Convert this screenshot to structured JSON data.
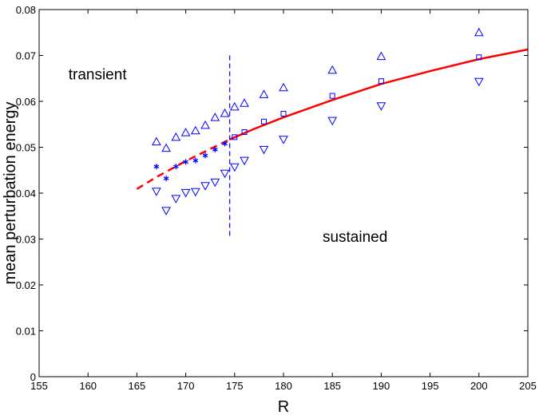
{
  "chart_data": {
    "type": "scatter",
    "xlabel": "R",
    "ylabel": "mean perturbation energy",
    "xlim": [
      155,
      205
    ],
    "ylim": [
      0,
      0.08
    ],
    "xticks": [
      155,
      160,
      165,
      170,
      175,
      180,
      185,
      190,
      195,
      200,
      205
    ],
    "xtick_labels": [
      "155",
      "160",
      "165",
      "170",
      "175",
      "180",
      "185",
      "190",
      "195",
      "200",
      "205"
    ],
    "yticks": [
      0,
      0.01,
      0.02,
      0.03,
      0.04,
      0.05,
      0.06,
      0.07,
      0.08
    ],
    "ytick_labels": [
      "0",
      "0.01",
      "0.02",
      "0.03",
      "0.04",
      "0.05",
      "0.06",
      "0.07",
      "0.08"
    ],
    "grid": false,
    "annotations": [
      {
        "text": "transient",
        "x": 158,
        "y": 0.0648
      },
      {
        "text": "sustained",
        "x": 184,
        "y": 0.0294
      }
    ],
    "series": [
      {
        "marker": "triangle-up",
        "color": "#0000ff",
        "x": [
          167,
          168,
          169,
          170,
          171,
          172,
          173,
          174,
          175,
          176,
          178,
          180,
          185,
          190,
          200
        ],
        "y": [
          0.0512,
          0.0498,
          0.0522,
          0.0532,
          0.0536,
          0.0548,
          0.0565,
          0.0574,
          0.0588,
          0.0596,
          0.0615,
          0.063,
          0.0668,
          0.0698,
          0.075
        ]
      },
      {
        "marker": "triangle-down",
        "color": "#0000ff",
        "x": [
          167,
          168,
          169,
          170,
          171,
          172,
          173,
          174,
          175,
          176,
          178,
          180,
          185,
          190,
          200
        ],
        "y": [
          0.0404,
          0.0362,
          0.0388,
          0.0401,
          0.0403,
          0.0416,
          0.0424,
          0.0443,
          0.0457,
          0.0471,
          0.0495,
          0.0517,
          0.0558,
          0.059,
          0.0643
        ]
      },
      {
        "marker": "asterisk",
        "color": "#0000ff",
        "x": [
          167,
          168,
          169,
          170,
          171,
          172,
          173,
          174
        ],
        "y": [
          0.0458,
          0.0432,
          0.0458,
          0.0468,
          0.0471,
          0.0482,
          0.0495,
          0.0508
        ]
      },
      {
        "marker": "square",
        "color": "#0000ff",
        "x": [
          175,
          176,
          178,
          180,
          185,
          190,
          200
        ],
        "y": [
          0.0522,
          0.0533,
          0.0556,
          0.0573,
          0.0612,
          0.0644,
          0.0696
        ]
      }
    ],
    "fit_curve": {
      "color": "#ff0000",
      "x": [
        165,
        167,
        170,
        172,
        174.5,
        177,
        180,
        185,
        190,
        195,
        200,
        205
      ],
      "y": [
        0.0409,
        0.0435,
        0.047,
        0.0491,
        0.0517,
        0.054,
        0.0565,
        0.0603,
        0.0638,
        0.0666,
        0.0692,
        0.0713
      ],
      "dashed_until_x": 174.5
    },
    "threshold_line": {
      "x": 174.5,
      "y": [
        0.03,
        0.07
      ],
      "style": "dashed",
      "color": "#0000ff"
    }
  }
}
